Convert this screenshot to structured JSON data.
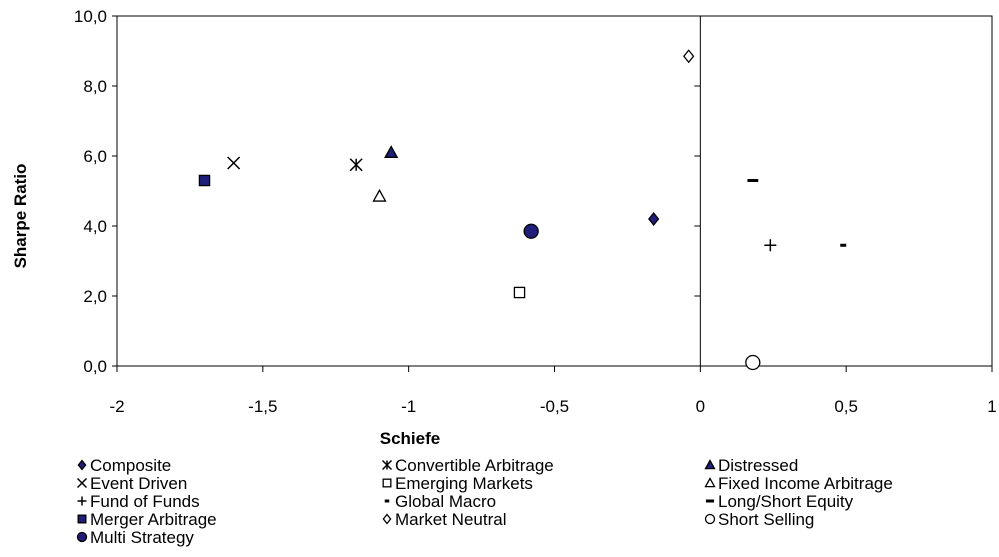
{
  "chart_data": {
    "type": "scatter",
    "title": "",
    "xlabel": "Schiefe",
    "ylabel": "Sharpe Ratio",
    "xlim": [
      -2,
      1
    ],
    "ylim": [
      0,
      10
    ],
    "x_ticks": [
      -2,
      -1.5,
      -1,
      -0.5,
      0,
      0.5,
      1
    ],
    "x_tick_labels": [
      "-2",
      "-1,5",
      "-1",
      "-0,5",
      "0",
      "0,5",
      "1"
    ],
    "y_ticks": [
      0,
      2,
      4,
      6,
      8,
      10
    ],
    "y_tick_labels": [
      "0,0",
      "2,0",
      "4,0",
      "6,0",
      "8,0",
      "10,0"
    ],
    "grid": false,
    "legend_position": "bottom",
    "series": [
      {
        "name": "Composite",
        "marker": "diamond-filled",
        "color": "#1f1f7a",
        "points": [
          {
            "x": -0.16,
            "y": 4.2
          }
        ]
      },
      {
        "name": "Convertible Arbitrage",
        "marker": "asterisk",
        "color": "#000000",
        "points": [
          {
            "x": -1.18,
            "y": 5.75
          }
        ]
      },
      {
        "name": "Distressed",
        "marker": "triangle-filled",
        "color": "#1f1f7a",
        "points": [
          {
            "x": -1.06,
            "y": 6.1
          }
        ]
      },
      {
        "name": "Event Driven",
        "marker": "x",
        "color": "#000000",
        "points": [
          {
            "x": -1.6,
            "y": 5.8
          }
        ]
      },
      {
        "name": "Emerging Markets",
        "marker": "square-open",
        "color": "#000000",
        "points": [
          {
            "x": -0.62,
            "y": 2.1
          }
        ]
      },
      {
        "name": "Fixed Income Arbitrage",
        "marker": "triangle-open",
        "color": "#000000",
        "points": [
          {
            "x": -1.1,
            "y": 4.85
          }
        ]
      },
      {
        "name": "Fund of Funds",
        "marker": "plus",
        "color": "#000000",
        "points": [
          {
            "x": 0.24,
            "y": 3.45
          }
        ]
      },
      {
        "name": "Global Macro",
        "marker": "dash-small",
        "color": "#000000",
        "points": [
          {
            "x": 0.49,
            "y": 3.45
          }
        ]
      },
      {
        "name": "Long/Short Equity",
        "marker": "dash",
        "color": "#000000",
        "points": [
          {
            "x": 0.18,
            "y": 5.3
          }
        ]
      },
      {
        "name": "Merger Arbitrage",
        "marker": "square-filled",
        "color": "#1f1f7a",
        "points": [
          {
            "x": -1.7,
            "y": 5.3
          }
        ]
      },
      {
        "name": "Market Neutral",
        "marker": "diamond-open",
        "color": "#000000",
        "points": [
          {
            "x": -0.04,
            "y": 8.85
          }
        ]
      },
      {
        "name": "Short Selling",
        "marker": "circle-open",
        "color": "#000000",
        "points": [
          {
            "x": 0.18,
            "y": 0.1
          }
        ]
      },
      {
        "name": "Multi Strategy",
        "marker": "circle-filled",
        "color": "#1f1f7a",
        "points": [
          {
            "x": -0.58,
            "y": 3.85
          }
        ]
      }
    ]
  }
}
